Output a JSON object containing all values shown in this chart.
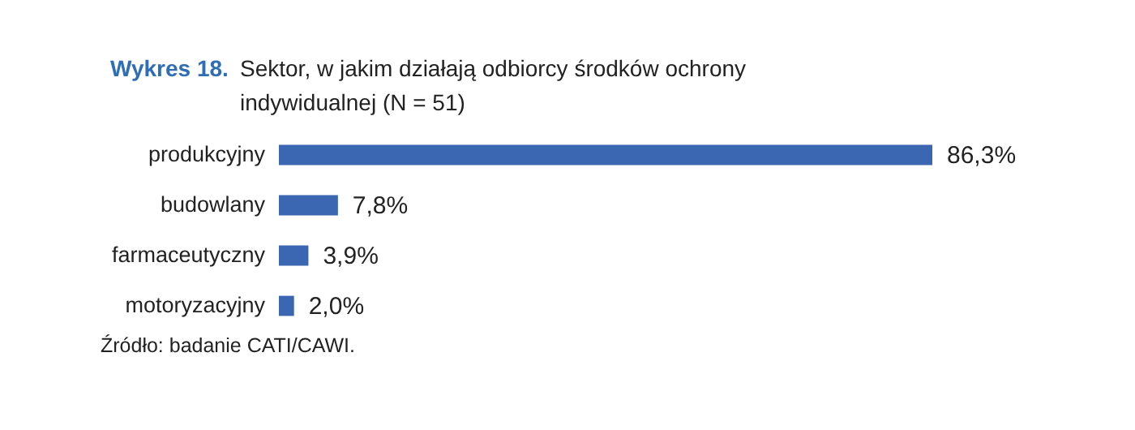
{
  "chart_data": {
    "type": "bar",
    "orientation": "horizontal",
    "title": "Wykres 18.",
    "subtitle": "Sektor, w jakim działają odbiorcy środków ochrony indywidualnej (N = 51)",
    "categories": [
      "produkcyjny",
      "budowlany",
      "farmaceutyczny",
      "motoryzacyjny"
    ],
    "values": [
      86.3,
      7.8,
      3.9,
      2.0
    ],
    "value_labels": [
      "86,3%",
      "7,8%",
      "3,9%",
      "2,0%"
    ],
    "color": "#3a66b2",
    "grid": false,
    "tick_labels": "y",
    "annotations": [
      "Źródło: badanie CATI/CAWI."
    ]
  }
}
